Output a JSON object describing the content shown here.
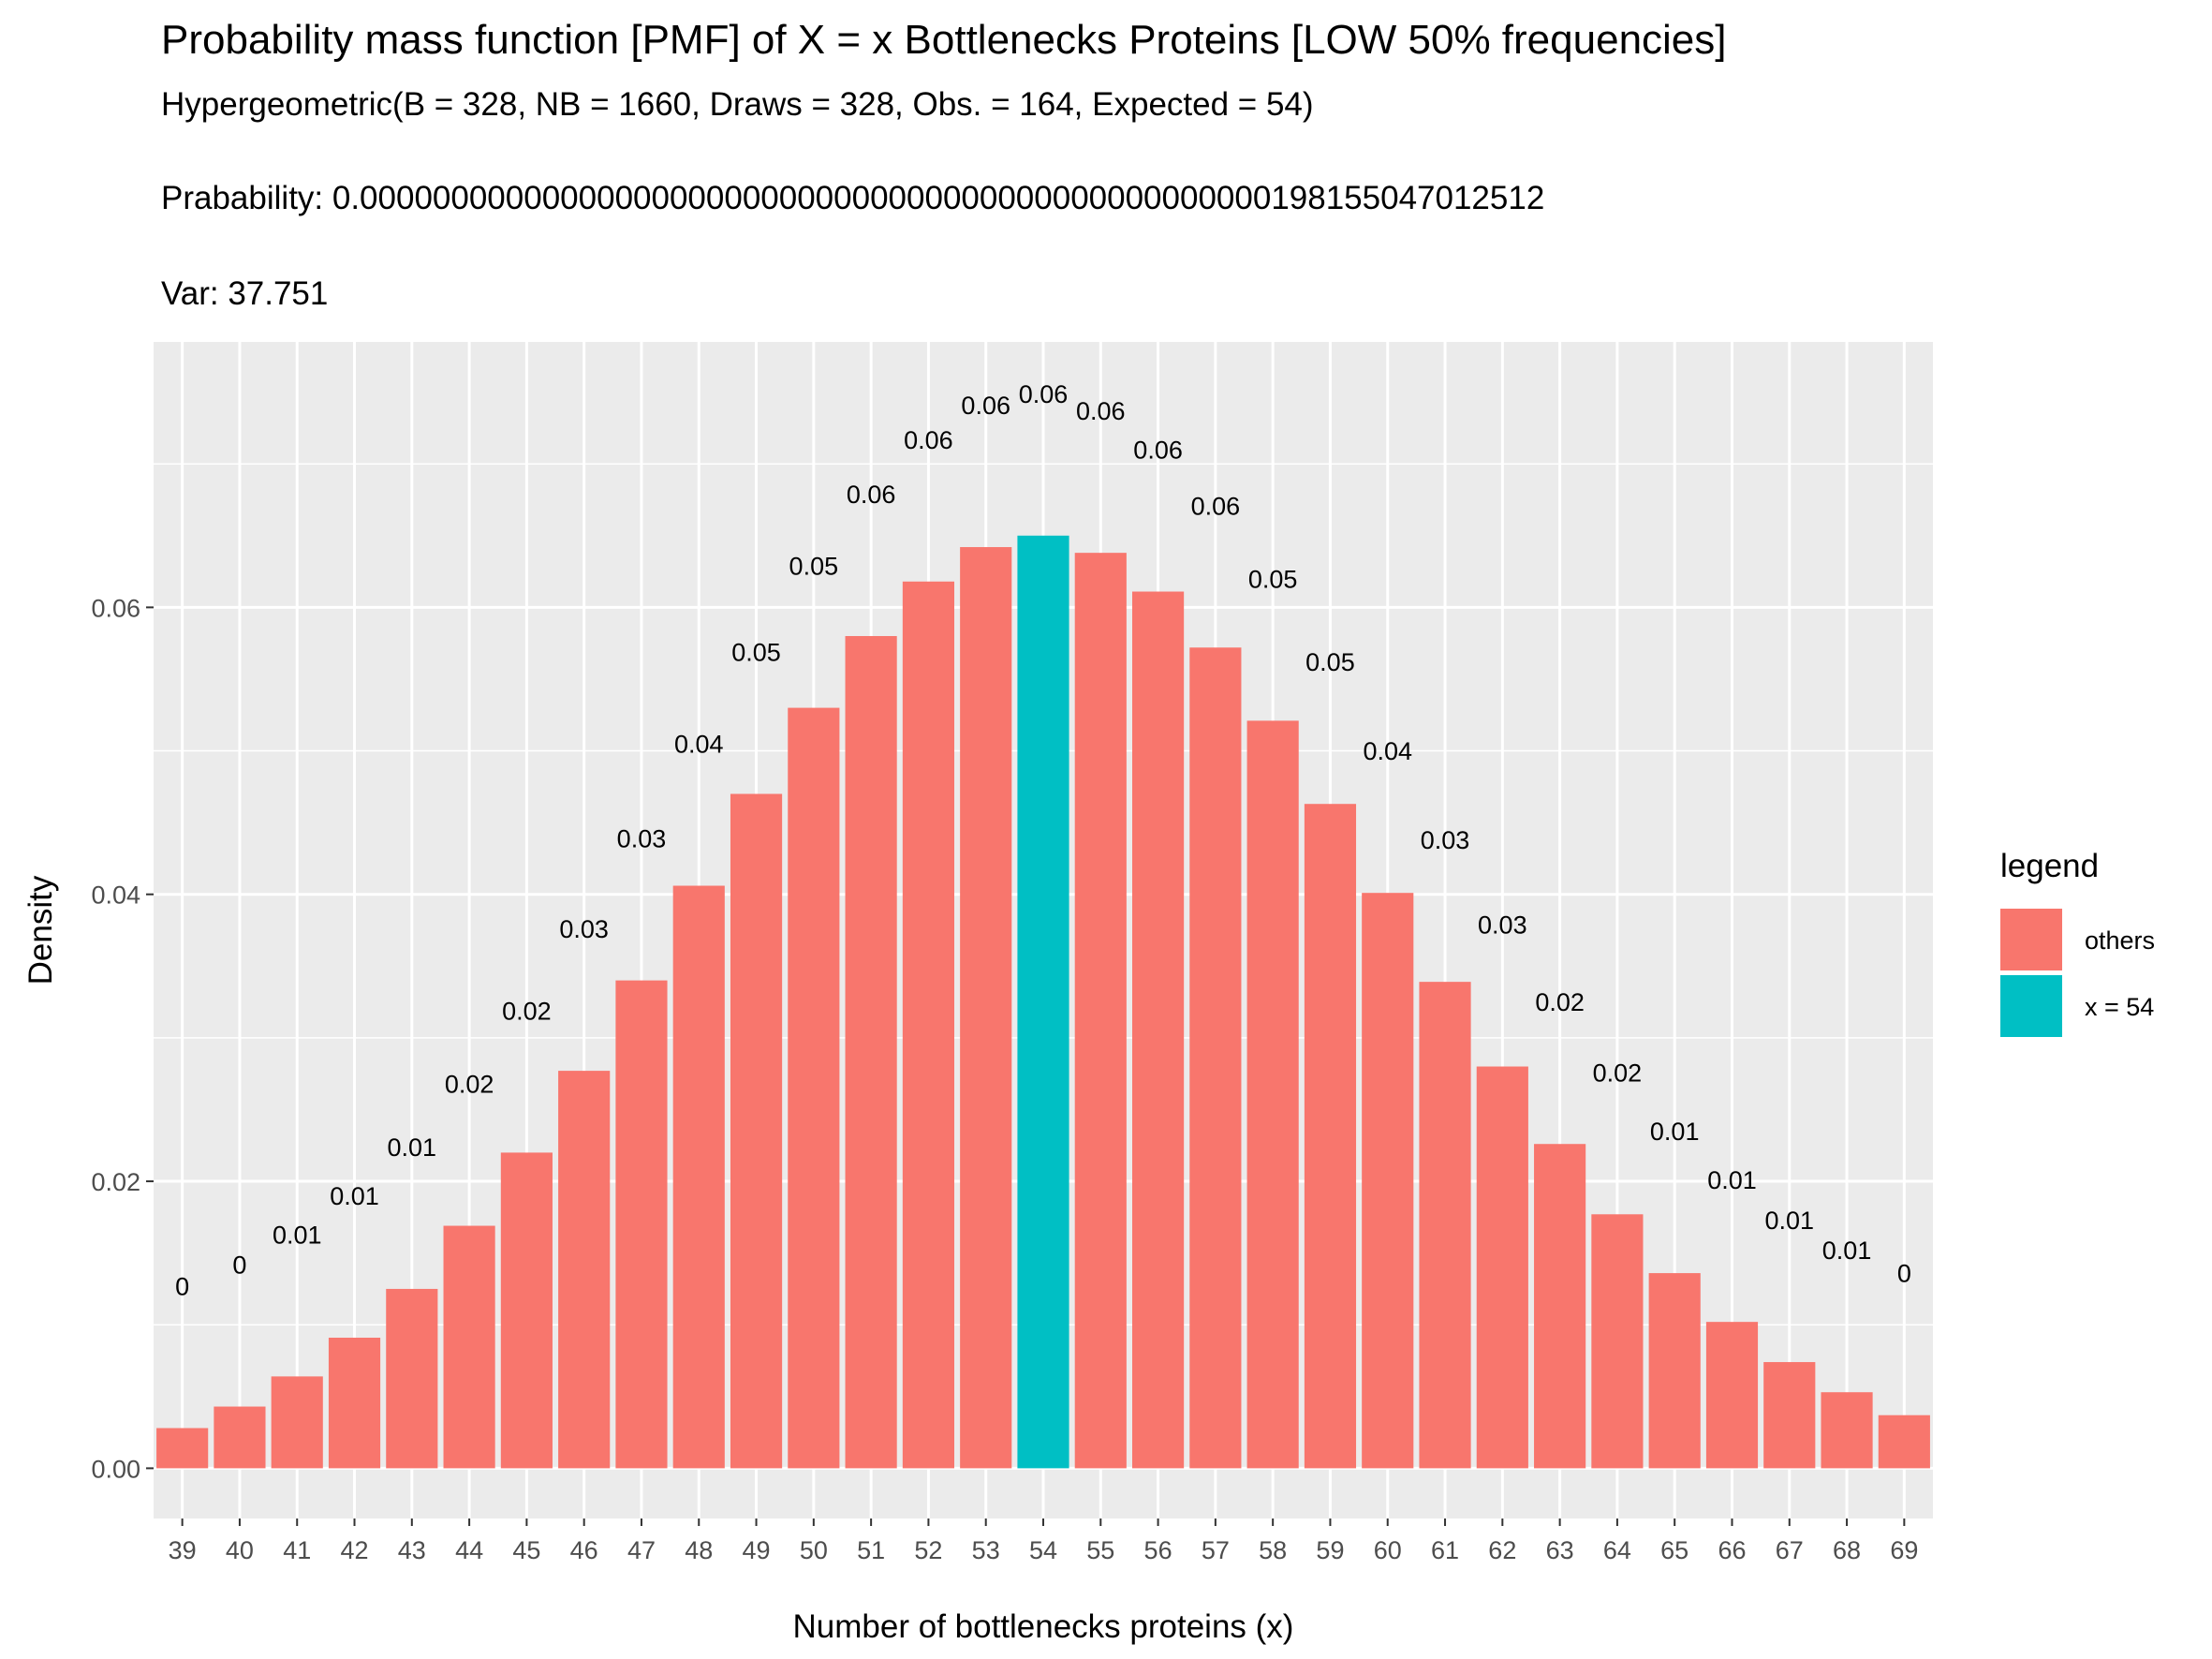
{
  "header": {
    "title": "Probability mass function [PMF] of X = x Bottlenecks Proteins [LOW 50% frequencies]",
    "subtitle": "Hypergeometric(B = 328, NB = 1660, Draws = 328, Obs. = 164, Expected = 54)",
    "probability": "Prabability: 0.00000000000000000000000000000000000000000000000000198155047012512",
    "variance": "Var: 37.751"
  },
  "chart_data": {
    "type": "bar",
    "xlabel": "Number of bottlenecks proteins (x)",
    "ylabel": "Density",
    "ylim": [
      -0.0035,
      0.0785
    ],
    "yticks": [
      0.0,
      0.02,
      0.04,
      0.06
    ],
    "ytick_labels": [
      "0.00",
      "0.02",
      "0.04",
      "0.06"
    ],
    "grid": true,
    "categories": [
      "39",
      "40",
      "41",
      "42",
      "43",
      "44",
      "45",
      "46",
      "47",
      "48",
      "49",
      "50",
      "51",
      "52",
      "53",
      "54",
      "55",
      "56",
      "57",
      "58",
      "59",
      "60",
      "61",
      "62",
      "63",
      "64",
      "65",
      "66",
      "67",
      "68",
      "69"
    ],
    "values": [
      0.0028,
      0.0043,
      0.0064,
      0.0091,
      0.0125,
      0.0169,
      0.022,
      0.0277,
      0.034,
      0.0406,
      0.047,
      0.053,
      0.058,
      0.0618,
      0.0642,
      0.065,
      0.0638,
      0.0611,
      0.0572,
      0.0521,
      0.0463,
      0.0401,
      0.0339,
      0.028,
      0.0226,
      0.0177,
      0.0136,
      0.0102,
      0.0074,
      0.0053,
      0.0037
    ],
    "labels": [
      "0",
      "0",
      "0.01",
      "0.01",
      "0.01",
      "0.02",
      "0.02",
      "0.03",
      "0.03",
      "0.04",
      "0.05",
      "0.05",
      "0.06",
      "0.06",
      "0.06",
      "0.06",
      "0.06",
      "0.06",
      "0.06",
      "0.05",
      "0.05",
      "0.04",
      "0.03",
      "0.03",
      "0.02",
      "0.02",
      "0.01",
      "0.01",
      "0.01",
      "0.01",
      "0"
    ],
    "groups": [
      "others",
      "others",
      "others",
      "others",
      "others",
      "others",
      "others",
      "others",
      "others",
      "others",
      "others",
      "others",
      "others",
      "others",
      "others",
      "x = 54",
      "others",
      "others",
      "others",
      "others",
      "others",
      "others",
      "others",
      "others",
      "others",
      "others",
      "others",
      "others",
      "others",
      "others",
      "others"
    ],
    "legend": {
      "title": "legend",
      "placement": "right",
      "entries": [
        {
          "name": "others",
          "color": "#F8766D"
        },
        {
          "name": "x = 54",
          "color": "#00BFC4"
        }
      ]
    }
  }
}
